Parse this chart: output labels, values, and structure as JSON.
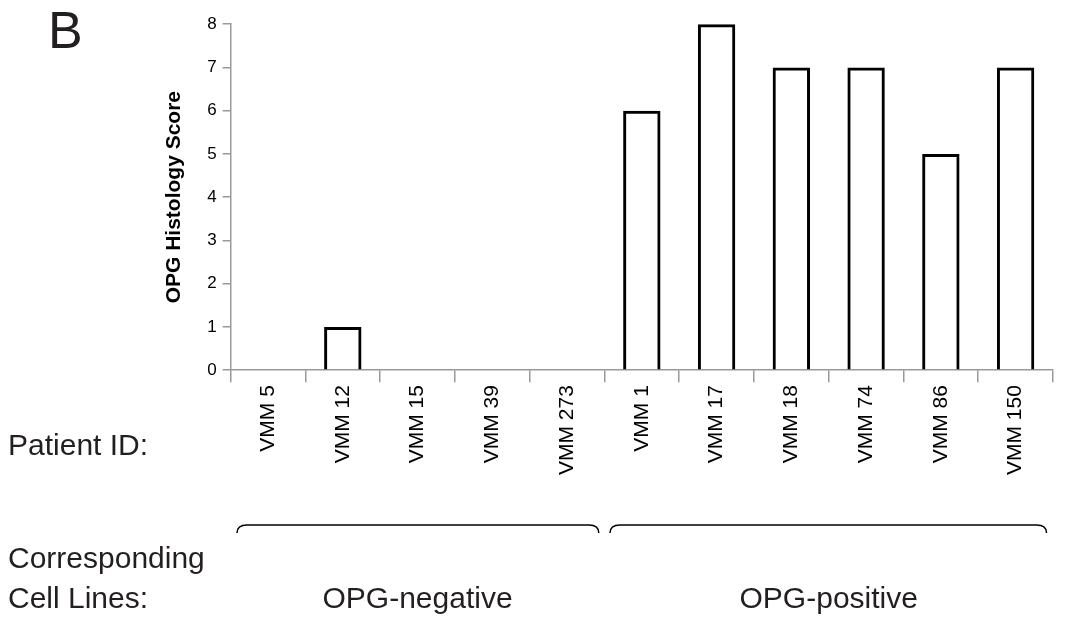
{
  "chart_data": {
    "type": "bar",
    "ylabel": "OPG Histology Score",
    "categories": [
      "VMM 5",
      "VMM 12",
      "VMM 15",
      "VMM 39",
      "VMM 273",
      "VMM 1",
      "VMM 17",
      "VMM 18",
      "VMM 74",
      "VMM 86",
      "VMM 150"
    ],
    "values": [
      0,
      1,
      0,
      0,
      0,
      6,
      8,
      7,
      7,
      5,
      7
    ],
    "color": "#000000",
    "ylim": [
      0,
      8
    ],
    "yticks": [
      0,
      1,
      2,
      3,
      4,
      5,
      6,
      7,
      8
    ],
    "grid": false,
    "legend": false,
    "annotations": [
      "B",
      "Patient ID:",
      "Corresponding Cell Lines:",
      "OPG-negative",
      "OPG-positive"
    ]
  }
}
